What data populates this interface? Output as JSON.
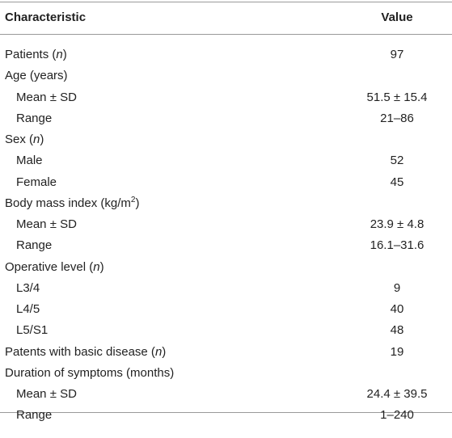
{
  "table": {
    "header": [
      "Characteristic",
      "Value"
    ],
    "rows": [
      {
        "label": [
          {
            "text": "Patients ("
          },
          {
            "text": "n",
            "style": "italic"
          },
          {
            "text": ")"
          }
        ],
        "value": "97"
      },
      {
        "label": [
          {
            "text": "Age (years)"
          }
        ]
      },
      {
        "label": [
          {
            "text": "Mean ± SD"
          }
        ],
        "indent": true,
        "value": "51.5 ± 15.4"
      },
      {
        "label": [
          {
            "text": "Range"
          }
        ],
        "indent": true,
        "value": "21–86"
      },
      {
        "label": [
          {
            "text": "Sex ("
          },
          {
            "text": "n",
            "style": "italic"
          },
          {
            "text": ")"
          }
        ]
      },
      {
        "label": [
          {
            "text": "Male"
          }
        ],
        "indent": true,
        "value": "52"
      },
      {
        "label": [
          {
            "text": "Female"
          }
        ],
        "indent": true,
        "value": "45"
      },
      {
        "label": [
          {
            "text": "Body mass index (kg/m"
          },
          {
            "text": "2",
            "style": "sup"
          },
          {
            "text": ")"
          }
        ]
      },
      {
        "label": [
          {
            "text": "Mean ± SD"
          }
        ],
        "indent": true,
        "value": "23.9 ± 4.8"
      },
      {
        "label": [
          {
            "text": "Range"
          }
        ],
        "indent": true,
        "value": "16.1–31.6"
      },
      {
        "label": [
          {
            "text": "Operative level ("
          },
          {
            "text": "n",
            "style": "italic"
          },
          {
            "text": ")"
          }
        ]
      },
      {
        "label": [
          {
            "text": "L3/4"
          }
        ],
        "indent": true,
        "value": "9"
      },
      {
        "label": [
          {
            "text": "L4/5"
          }
        ],
        "indent": true,
        "value": "40"
      },
      {
        "label": [
          {
            "text": "L5/S1"
          }
        ],
        "indent": true,
        "value": "48"
      },
      {
        "label": [
          {
            "text": "Patents with basic disease ("
          },
          {
            "text": "n",
            "style": "italic"
          },
          {
            "text": ")"
          }
        ],
        "value": "19"
      },
      {
        "label": [
          {
            "text": "Duration of symptoms (months)"
          }
        ]
      },
      {
        "label": [
          {
            "text": "Mean ± SD"
          }
        ],
        "indent": true,
        "value": "24.4 ± 39.5"
      },
      {
        "label": [
          {
            "text": "Range"
          }
        ],
        "indent": true,
        "value": "1–240"
      }
    ]
  }
}
